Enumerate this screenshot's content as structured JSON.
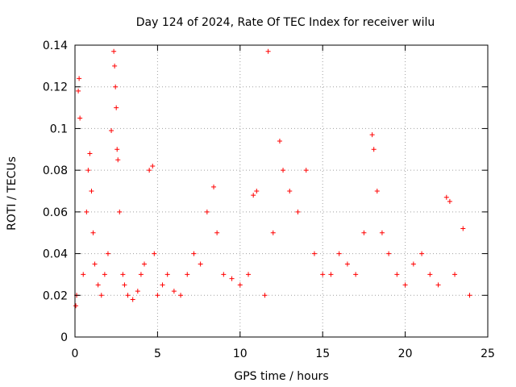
{
  "chart_data": {
    "type": "scatter",
    "title": "Day 124 of 2024, Rate Of TEC Index for receiver wilu",
    "xlabel": "GPS time / hours",
    "ylabel": "ROTI / TECUs",
    "xlim": [
      0,
      25
    ],
    "ylim": [
      0,
      0.14
    ],
    "x_ticks": [
      0,
      5,
      10,
      15,
      20,
      25
    ],
    "y_ticks": [
      0,
      0.02,
      0.04,
      0.06,
      0.08,
      0.1,
      0.12,
      0.14
    ],
    "x_tick_labels": [
      "0",
      "5",
      "10",
      "15",
      "20",
      "25"
    ],
    "y_tick_labels": [
      "0",
      "0.02",
      "0.04",
      "0.06",
      "0.08",
      "0.1",
      "0.12",
      "0.14"
    ],
    "grid": true,
    "marker": "plus",
    "color": "#ff0000",
    "series": [
      {
        "x": [
          0.05,
          0.1,
          0.2,
          0.25,
          0.3,
          0.5,
          0.7,
          0.8,
          0.9,
          1.0,
          1.1,
          1.2,
          1.4,
          1.6,
          1.8,
          2.0,
          2.2,
          2.35,
          2.4,
          2.45,
          2.5,
          2.55,
          2.6,
          2.7,
          2.9,
          3.0,
          3.2,
          3.5,
          3.8,
          4.0,
          4.2,
          4.5,
          4.7,
          4.8,
          5.0,
          5.3,
          5.6,
          6.0,
          6.4,
          6.8,
          7.2,
          7.6,
          8.0,
          8.4,
          8.6,
          9.0,
          9.5,
          10.0,
          10.5,
          10.8,
          11.0,
          11.5,
          11.7,
          12.0,
          12.4,
          12.6,
          13.0,
          13.5,
          14.0,
          14.5,
          15.0,
          15.5,
          16.0,
          16.5,
          17.0,
          17.5,
          18.0,
          18.1,
          18.3,
          18.6,
          19.0,
          19.5,
          20.0,
          20.5,
          21.0,
          21.5,
          22.0,
          22.5,
          22.7,
          23.0,
          23.5,
          23.9
        ],
        "y": [
          0.015,
          0.02,
          0.118,
          0.124,
          0.105,
          0.03,
          0.06,
          0.08,
          0.088,
          0.07,
          0.05,
          0.035,
          0.025,
          0.02,
          0.03,
          0.04,
          0.099,
          0.137,
          0.13,
          0.12,
          0.11,
          0.09,
          0.085,
          0.06,
          0.03,
          0.025,
          0.02,
          0.018,
          0.022,
          0.03,
          0.035,
          0.08,
          0.082,
          0.04,
          0.02,
          0.025,
          0.03,
          0.022,
          0.02,
          0.03,
          0.04,
          0.035,
          0.06,
          0.072,
          0.05,
          0.03,
          0.028,
          0.025,
          0.03,
          0.068,
          0.07,
          0.02,
          0.137,
          0.05,
          0.094,
          0.08,
          0.07,
          0.06,
          0.08,
          0.04,
          0.03,
          0.03,
          0.04,
          0.035,
          0.03,
          0.05,
          0.097,
          0.09,
          0.07,
          0.05,
          0.04,
          0.03,
          0.025,
          0.035,
          0.04,
          0.03,
          0.025,
          0.067,
          0.065,
          0.03,
          0.052,
          0.02
        ]
      }
    ]
  }
}
